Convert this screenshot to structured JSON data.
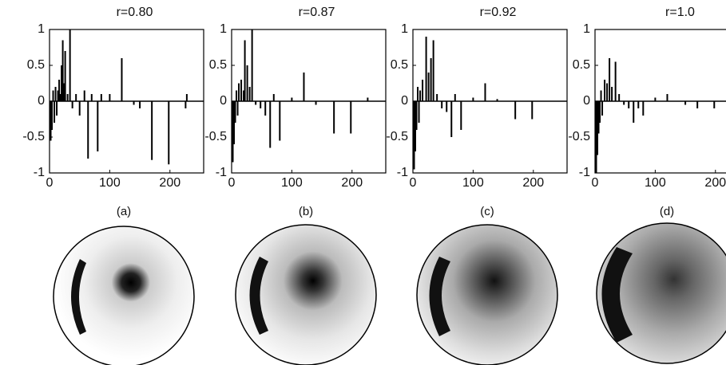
{
  "chart_data": [
    {
      "type": "stem",
      "title": "r=0.80",
      "caption": "(a)",
      "x": [
        2,
        4,
        6,
        8,
        10,
        12,
        14,
        16,
        18,
        20,
        22,
        24,
        26,
        30,
        34,
        38,
        44,
        50,
        58,
        64,
        70,
        80,
        86,
        100,
        120,
        140,
        150,
        170,
        198,
        226,
        228
      ],
      "values": [
        -0.55,
        -0.4,
        0.15,
        -0.3,
        0.2,
        -0.2,
        0.15,
        0.3,
        0.1,
        0.5,
        0.85,
        0.25,
        0.7,
        0.1,
        1.0,
        -0.1,
        0.1,
        -0.2,
        0.15,
        -0.8,
        0.1,
        -0.7,
        0.1,
        0.1,
        0.6,
        -0.05,
        -0.1,
        -0.82,
        -0.88,
        -0.1,
        0.1
      ],
      "xlim": [
        0,
        256
      ],
      "ylim": [
        -1,
        1
      ],
      "xticks": [
        0,
        100,
        200
      ],
      "yticks": [
        -1,
        -0.5,
        0,
        0.5,
        1
      ],
      "color": "#000000"
    },
    {
      "type": "stem",
      "title": "r=0.87",
      "caption": "(b)",
      "x": [
        2,
        4,
        6,
        8,
        10,
        12,
        16,
        20,
        22,
        26,
        30,
        34,
        40,
        48,
        56,
        64,
        70,
        80,
        100,
        120,
        140,
        170,
        198,
        226
      ],
      "values": [
        -0.85,
        -0.6,
        -0.3,
        0.15,
        -0.2,
        0.25,
        0.3,
        0.15,
        0.85,
        0.5,
        0.2,
        1.0,
        -0.05,
        -0.1,
        -0.2,
        -0.65,
        0.1,
        -0.55,
        0.05,
        0.4,
        -0.05,
        -0.45,
        -0.45,
        0.05
      ],
      "xlim": [
        0,
        256
      ],
      "ylim": [
        -1,
        1
      ],
      "xticks": [
        0,
        100,
        200
      ],
      "yticks": [
        -1,
        -0.5,
        0,
        0.5,
        1
      ],
      "color": "#000000"
    },
    {
      "type": "stem",
      "title": "r=0.92",
      "caption": "(c)",
      "x": [
        2,
        4,
        6,
        8,
        10,
        12,
        16,
        22,
        26,
        30,
        34,
        40,
        48,
        56,
        64,
        70,
        80,
        100,
        120,
        140,
        170,
        198
      ],
      "values": [
        -0.95,
        -0.7,
        -0.4,
        0.2,
        -0.3,
        0.15,
        0.3,
        0.9,
        0.4,
        0.6,
        0.85,
        0.1,
        -0.1,
        -0.15,
        -0.5,
        0.1,
        -0.4,
        0.05,
        0.25,
        0.03,
        -0.25,
        -0.25
      ],
      "xlim": [
        0,
        256
      ],
      "ylim": [
        -1,
        1
      ],
      "xticks": [
        0,
        100,
        200
      ],
      "yticks": [
        -1,
        -0.5,
        0,
        0.5,
        1
      ],
      "color": "#000000"
    },
    {
      "type": "stem",
      "title": "r=1.0",
      "caption": "(d)",
      "x": [
        2,
        4,
        6,
        8,
        10,
        12,
        16,
        20,
        24,
        28,
        34,
        40,
        48,
        56,
        64,
        72,
        80,
        100,
        120,
        150,
        170,
        198
      ],
      "values": [
        -1.0,
        -0.75,
        -0.45,
        -0.3,
        0.15,
        -0.2,
        0.3,
        0.25,
        0.6,
        0.2,
        0.55,
        0.1,
        -0.05,
        -0.1,
        -0.3,
        -0.1,
        -0.2,
        0.05,
        0.1,
        -0.05,
        -0.1,
        -0.1
      ],
      "xlim": [
        0,
        256
      ],
      "ylim": [
        -1,
        1
      ],
      "xticks": [
        0,
        100,
        200
      ],
      "yticks": [
        -1,
        -0.5,
        0,
        0.5,
        1
      ],
      "color": "#000000"
    }
  ]
}
